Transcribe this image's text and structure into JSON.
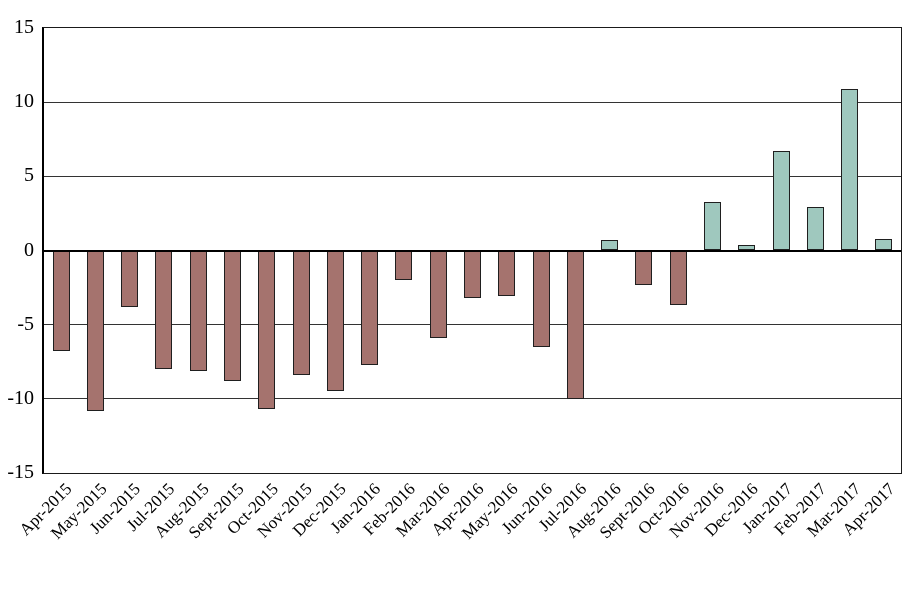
{
  "chart_data": {
    "type": "bar",
    "title": "",
    "xlabel": "",
    "ylabel": "",
    "categories": [
      "Apr-2015",
      "May-2015",
      "Jun-2015",
      "Jul-2015",
      "Aug-2015",
      "Sept-2015",
      "Oct-2015",
      "Nov-2015",
      "Dec-2015",
      "Jan-2016",
      "Feb-2016",
      "Mar-2016",
      "Apr-2016",
      "May-2016",
      "Jun-2016",
      "Jul-2016",
      "Aug-2016",
      "Sept-2016",
      "Oct-2016",
      "Nov-2016",
      "Dec-2016",
      "Jan-2017",
      "Feb-2017",
      "Mar-2017",
      "Apr-2017"
    ],
    "values": [
      -6.8,
      -10.8,
      -3.8,
      -8.0,
      -8.1,
      -8.8,
      -10.7,
      -8.4,
      -9.5,
      -7.7,
      -2.0,
      -5.9,
      -3.2,
      -3.1,
      -6.5,
      -10.0,
      0.7,
      -2.3,
      -3.7,
      3.3,
      0.4,
      6.7,
      2.9,
      10.9,
      0.8
    ],
    "ylim": [
      -15,
      15
    ],
    "yticks": [
      15,
      10,
      5,
      0,
      -5,
      -10,
      -15
    ],
    "grid": true,
    "legend": false,
    "colors": {
      "positive_fill": "#9fc8be",
      "negative_fill": "#a5736e",
      "bar_border": "#1f1f1f",
      "gridline": "#333333",
      "zero_line": "#000000",
      "background": "#ffffff"
    }
  }
}
